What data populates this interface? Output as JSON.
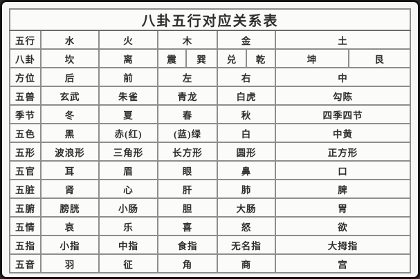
{
  "title": "八卦五行对应关系表",
  "table": {
    "header_rows": [
      {
        "label": "五行",
        "cells": [
          "水",
          "火",
          "木",
          "金",
          "土"
        ]
      },
      {
        "label": "八卦",
        "cells": [
          "坎",
          "离",
          "震",
          "巽",
          "兑",
          "乾",
          "坤",
          "艮"
        ]
      }
    ],
    "rows": [
      {
        "label": "方位",
        "cells": [
          "后",
          "前",
          "左",
          "右",
          "中"
        ]
      },
      {
        "label": "五兽",
        "cells": [
          "玄武",
          "朱雀",
          "青龙",
          "白虎",
          "勾陈"
        ]
      },
      {
        "label": "季节",
        "cells": [
          "冬",
          "夏",
          "春",
          "秋",
          "四季四节"
        ]
      },
      {
        "label": "五色",
        "cells": [
          "黑",
          "赤(红)",
          "(蓝)绿",
          "白",
          "中黄"
        ]
      },
      {
        "label": "五形",
        "cells": [
          "波浪形",
          "三角形",
          "长方形",
          "圆形",
          "正方形"
        ]
      },
      {
        "label": "五官",
        "cells": [
          "耳",
          "眉",
          "眼",
          "鼻",
          "口"
        ]
      },
      {
        "label": "五脏",
        "cells": [
          "肾",
          "心",
          "肝",
          "肺",
          "脾"
        ]
      },
      {
        "label": "五腑",
        "cells": [
          "膀胱",
          "小肠",
          "胆",
          "大肠",
          "胃"
        ]
      },
      {
        "label": "五情",
        "cells": [
          "哀",
          "乐",
          "喜",
          "怒",
          "欲"
        ]
      },
      {
        "label": "五指",
        "cells": [
          "小指",
          "中指",
          "食指",
          "无名指",
          "大拇指"
        ]
      },
      {
        "label": "五音",
        "cells": [
          "羽",
          "征",
          "角",
          "商",
          "宫"
        ]
      }
    ]
  }
}
